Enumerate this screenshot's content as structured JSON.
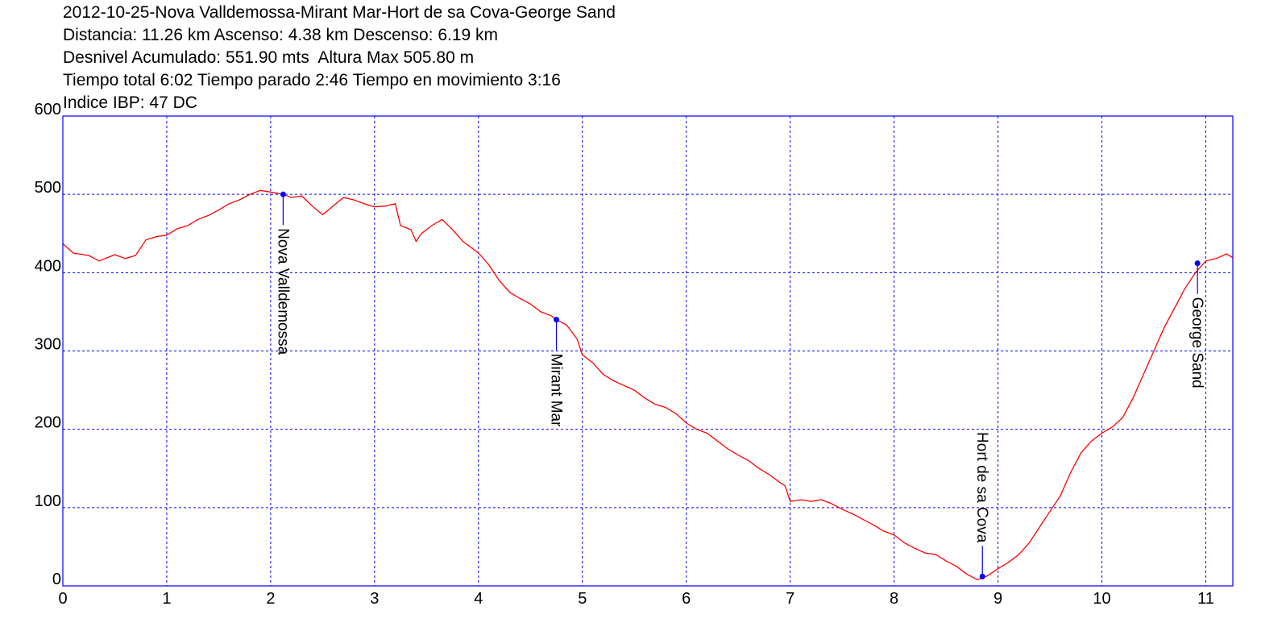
{
  "header": {
    "line1": "2012-10-25-Nova Valldemossa-Mirant Mar-Hort de sa Cova-George Sand",
    "line2": "Distancia: 11.26 km Ascenso: 4.38 km Descenso: 6.19 km",
    "line3": "Desnivel Acumulado: 551.90 mts  Altura Max 505.80 m",
    "line4": "Tiempo total 6:02 Tiempo parado 2:46 Tiempo en movimiento 3:16",
    "line5": "Indice IBP: 47 DC"
  },
  "chart_data": {
    "type": "line",
    "xlim": [
      0,
      11.26
    ],
    "ylim": [
      0,
      600
    ],
    "x_ticks": [
      0,
      1,
      2,
      3,
      4,
      5,
      6,
      7,
      8,
      9,
      10,
      11
    ],
    "y_ticks": [
      0,
      100,
      200,
      300,
      400,
      500,
      600
    ],
    "grid": true,
    "colors": {
      "line": "#ff0000",
      "grid": "#0000ff",
      "frame": "#0000ff",
      "marker": "#0000ff"
    },
    "series": [
      {
        "x": [
          0,
          0.1,
          0.25,
          0.35,
          0.5,
          0.6,
          0.7,
          0.8,
          0.9,
          1.0,
          1.1,
          1.2,
          1.3,
          1.4,
          1.5,
          1.6,
          1.7,
          1.8,
          1.9,
          2.0,
          2.12,
          2.2,
          2.3,
          2.4,
          2.5,
          2.6,
          2.7,
          2.8,
          2.9,
          3.0,
          3.1,
          3.2,
          3.25,
          3.35,
          3.4,
          3.45,
          3.55,
          3.65,
          3.75,
          3.85,
          4.0,
          4.1,
          4.2,
          4.3,
          4.4,
          4.5,
          4.6,
          4.7,
          4.75,
          4.85,
          4.95,
          5.0,
          5.1,
          5.2,
          5.3,
          5.4,
          5.5,
          5.6,
          5.7,
          5.8,
          5.9,
          6.0,
          6.1,
          6.2,
          6.3,
          6.4,
          6.5,
          6.6,
          6.7,
          6.8,
          6.9,
          6.95,
          7.0,
          7.1,
          7.2,
          7.3,
          7.4,
          7.5,
          7.6,
          7.7,
          7.8,
          7.9,
          8.0,
          8.1,
          8.2,
          8.3,
          8.4,
          8.5,
          8.6,
          8.7,
          8.8,
          8.85,
          8.9,
          9.0,
          9.1,
          9.2,
          9.3,
          9.4,
          9.5,
          9.6,
          9.7,
          9.8,
          9.9,
          10.0,
          10.1,
          10.2,
          10.3,
          10.4,
          10.5,
          10.6,
          10.7,
          10.8,
          10.9,
          11.0,
          11.1,
          11.2,
          11.26
        ],
        "y": [
          437,
          425,
          422,
          415,
          423,
          418,
          422,
          442,
          446,
          448,
          456,
          460,
          468,
          473,
          480,
          488,
          493,
          500,
          505,
          503,
          500,
          496,
          498,
          485,
          474,
          485,
          496,
          493,
          488,
          484,
          485,
          488,
          460,
          455,
          440,
          450,
          460,
          468,
          455,
          440,
          425,
          410,
          390,
          375,
          367,
          360,
          350,
          345,
          340,
          333,
          315,
          295,
          285,
          270,
          262,
          256,
          250,
          240,
          232,
          228,
          220,
          208,
          200,
          195,
          185,
          175,
          167,
          160,
          150,
          142,
          132,
          128,
          108,
          110,
          108,
          110,
          105,
          98,
          92,
          85,
          78,
          70,
          65,
          55,
          48,
          42,
          40,
          32,
          25,
          15,
          8,
          10,
          13,
          22,
          30,
          40,
          55,
          75,
          95,
          115,
          145,
          170,
          185,
          195,
          203,
          215,
          240,
          270,
          300,
          330,
          355,
          380,
          400,
          415,
          418,
          424,
          419
        ]
      }
    ],
    "waypoints": [
      {
        "label": "Nova Valldemossa",
        "x": 2.12,
        "y": 500
      },
      {
        "label": "Mirant Mar",
        "x": 4.75,
        "y": 340
      },
      {
        "label": "Hort de sa Cova",
        "x": 8.85,
        "y": 12
      },
      {
        "label": "George Sand",
        "x": 10.92,
        "y": 412
      }
    ]
  }
}
